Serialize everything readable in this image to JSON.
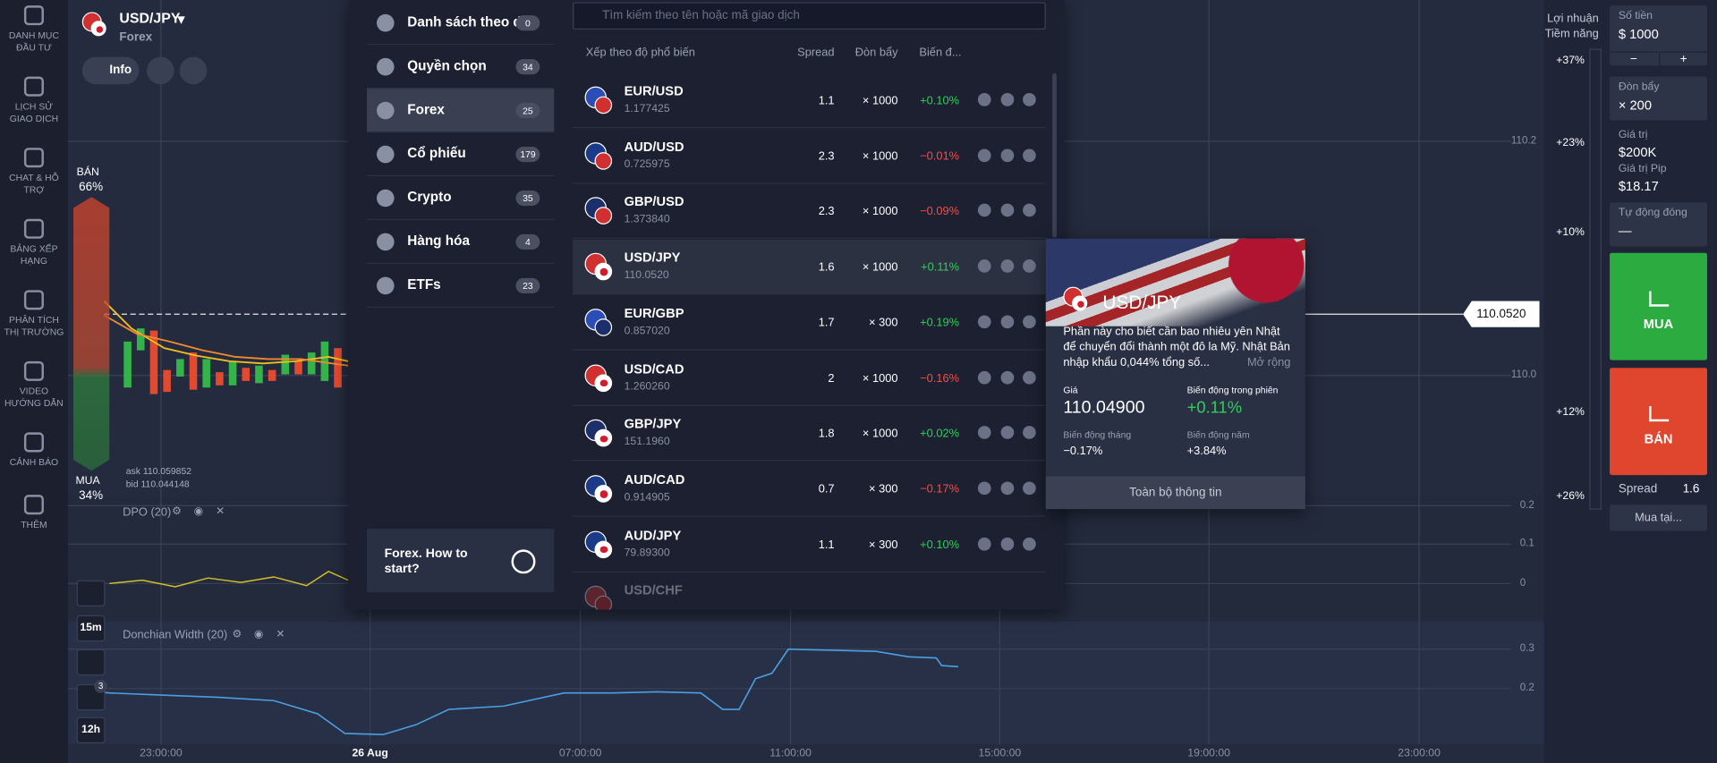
{
  "sidebar": [
    "DANH MỤC ĐẦU TƯ",
    "LỊCH SỬ GIAO DỊCH",
    "CHAT & HỖ TRỢ",
    "BẢNG XẾP HẠNG",
    "PHÂN TÍCH THỊ TRƯỜNG",
    "VIDEO HƯỚNG DẪN",
    "CẢNH BÁO",
    "THÊM"
  ],
  "asset": {
    "name": "USD/JPY",
    "type": "Forex",
    "info": "Info"
  },
  "chart": {
    "sell_label": "BÁN",
    "sell_pct": "66%",
    "buy_label": "MUA",
    "buy_pct": "34%",
    "ask": "ask 110.059852",
    "bid": "bid 110.044148",
    "price_tag": "110.0520",
    "y_axis": [
      "110.2",
      "110.0"
    ],
    "pct_labels": [
      "+37%",
      "+23%",
      "+10%",
      "+12%",
      "+26%"
    ],
    "indicators": [
      {
        "name": "DPO (20)",
        "axis": [
          "0.2",
          "0.1",
          "0"
        ]
      },
      {
        "name": "Donchian Width (20)",
        "axis": [
          "0.3",
          "0.2"
        ]
      }
    ],
    "timeframes": [
      "15m",
      "12h"
    ],
    "badge": "3",
    "time_axis": [
      "23:00:00",
      "26 Aug",
      "07:00:00",
      "11:00:00",
      "15:00:00",
      "19:00:00",
      "23:00:00"
    ]
  },
  "categories": [
    {
      "label": "Danh sách theo dõi",
      "count": 0
    },
    {
      "label": "Quyền chọn",
      "count": 34
    },
    {
      "label": "Forex",
      "count": 25
    },
    {
      "label": "Cổ phiếu",
      "count": 179
    },
    {
      "label": "Crypto",
      "count": 35
    },
    {
      "label": "Hàng hóa",
      "count": 4
    },
    {
      "label": "ETFs",
      "count": 23
    }
  ],
  "promo": "Forex. How to start?",
  "search_placeholder": "Tìm kiếm theo tên hoặc mã giao dịch",
  "list_header": {
    "sort": "Xếp theo độ phổ biến",
    "spread": "Spread",
    "leverage": "Đòn bẩy",
    "change": "Biến đ..."
  },
  "instruments": [
    {
      "name": "EUR/USD",
      "price": "1.177425",
      "spread": 1.1,
      "leverage": "× 1000",
      "change": "+0.10%"
    },
    {
      "name": "AUD/USD",
      "price": "0.725975",
      "spread": 2.3,
      "leverage": "× 1000",
      "change": "−0.01%"
    },
    {
      "name": "GBP/USD",
      "price": "1.373840",
      "spread": 2.3,
      "leverage": "× 1000",
      "change": "−0.09%"
    },
    {
      "name": "USD/JPY",
      "price": "110.0520",
      "spread": 1.6,
      "leverage": "× 1000",
      "change": "+0.11%"
    },
    {
      "name": "EUR/GBP",
      "price": "0.857020",
      "spread": 1.7,
      "leverage": "× 300",
      "change": "+0.19%"
    },
    {
      "name": "USD/CAD",
      "price": "1.260260",
      "spread": 2,
      "leverage": "× 1000",
      "change": "−0.16%"
    },
    {
      "name": "GBP/JPY",
      "price": "151.1960",
      "spread": 1.8,
      "leverage": "× 1000",
      "change": "+0.02%"
    },
    {
      "name": "AUD/CAD",
      "price": "0.914905",
      "spread": 0.7,
      "leverage": "× 300",
      "change": "−0.17%"
    },
    {
      "name": "AUD/JPY",
      "price": "79.89300",
      "spread": 1.1,
      "leverage": "× 300",
      "change": "+0.10%"
    },
    {
      "name": "USD/CHF"
    }
  ],
  "popup": {
    "title": "USD/JPY",
    "description": "Phần này cho biết cần bao nhiêu yên Nhật để chuyển đổi thành một đô la Mỹ. Nhật Bản nhập khẩu 0,044% tổng số...",
    "more": "Mở rộng",
    "price_label": "Giá",
    "price": "110.04900",
    "session_label": "Biến động trong phiên",
    "session": "+0.11%",
    "month_label": "Biến động tháng",
    "month": "−0.17%",
    "year_label": "Biến động năm",
    "year": "+3.84%",
    "button": "Toàn bộ thông tin"
  },
  "trade": {
    "profit_label": "Lợi nhuận Tiềm năng",
    "amount_label": "Số tiền",
    "amount": "$ 1000",
    "minus": "−",
    "plus": "+",
    "leverage_label": "Đòn bẩy",
    "leverage": "× 200",
    "value_label": "Giá trị",
    "value": "$200K",
    "pip_label": "Giá trị Pip",
    "pip": "$18.17",
    "auto_close_label": "Tự động đóng",
    "auto_close": "—",
    "buy": "MUA",
    "sell": "BÁN",
    "spread_label": "Spread",
    "spread": 1.6,
    "buy_at": "Mua tại..."
  }
}
